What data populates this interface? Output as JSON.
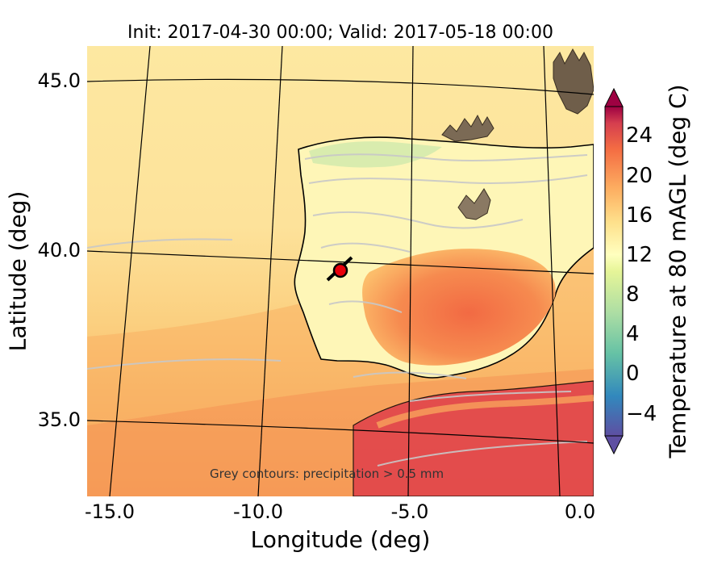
{
  "title": "Init: 2017-04-30 00:00; Valid: 2017-05-18 00:00",
  "xlabel": "Longitude (deg)",
  "ylabel": "Latitude (deg)",
  "xticks": [
    "-15.0",
    "-10.0",
    "-5.0",
    "0.0"
  ],
  "yticks": [
    "45.0",
    "40.0",
    "35.0"
  ],
  "colorbar": {
    "label": "Temperature at 80 mAGL (deg C)",
    "ticks": [
      "24",
      "20",
      "16",
      "12",
      "8",
      "4",
      "0",
      "−4"
    ],
    "cmap": "Spectral_r",
    "range": [
      -6,
      27
    ],
    "colors": {
      "low": "#5e4fa2",
      "mid": "#ffffbf",
      "high": "#9e0142"
    }
  },
  "annotation": "Grey contours: precipitation > 0.5 mm",
  "marker": {
    "lon": -7.7,
    "lat": 39.4,
    "color": "#e8000b"
  },
  "colors": {
    "ocean_north": "#fde9a3",
    "ocean_south": "#f7a25b",
    "land_interior": "#fdf5b5",
    "land_hot": "#f36b43",
    "mountain_grey": "#8a7c6b",
    "contour_grey": "#c8c8c8"
  }
}
